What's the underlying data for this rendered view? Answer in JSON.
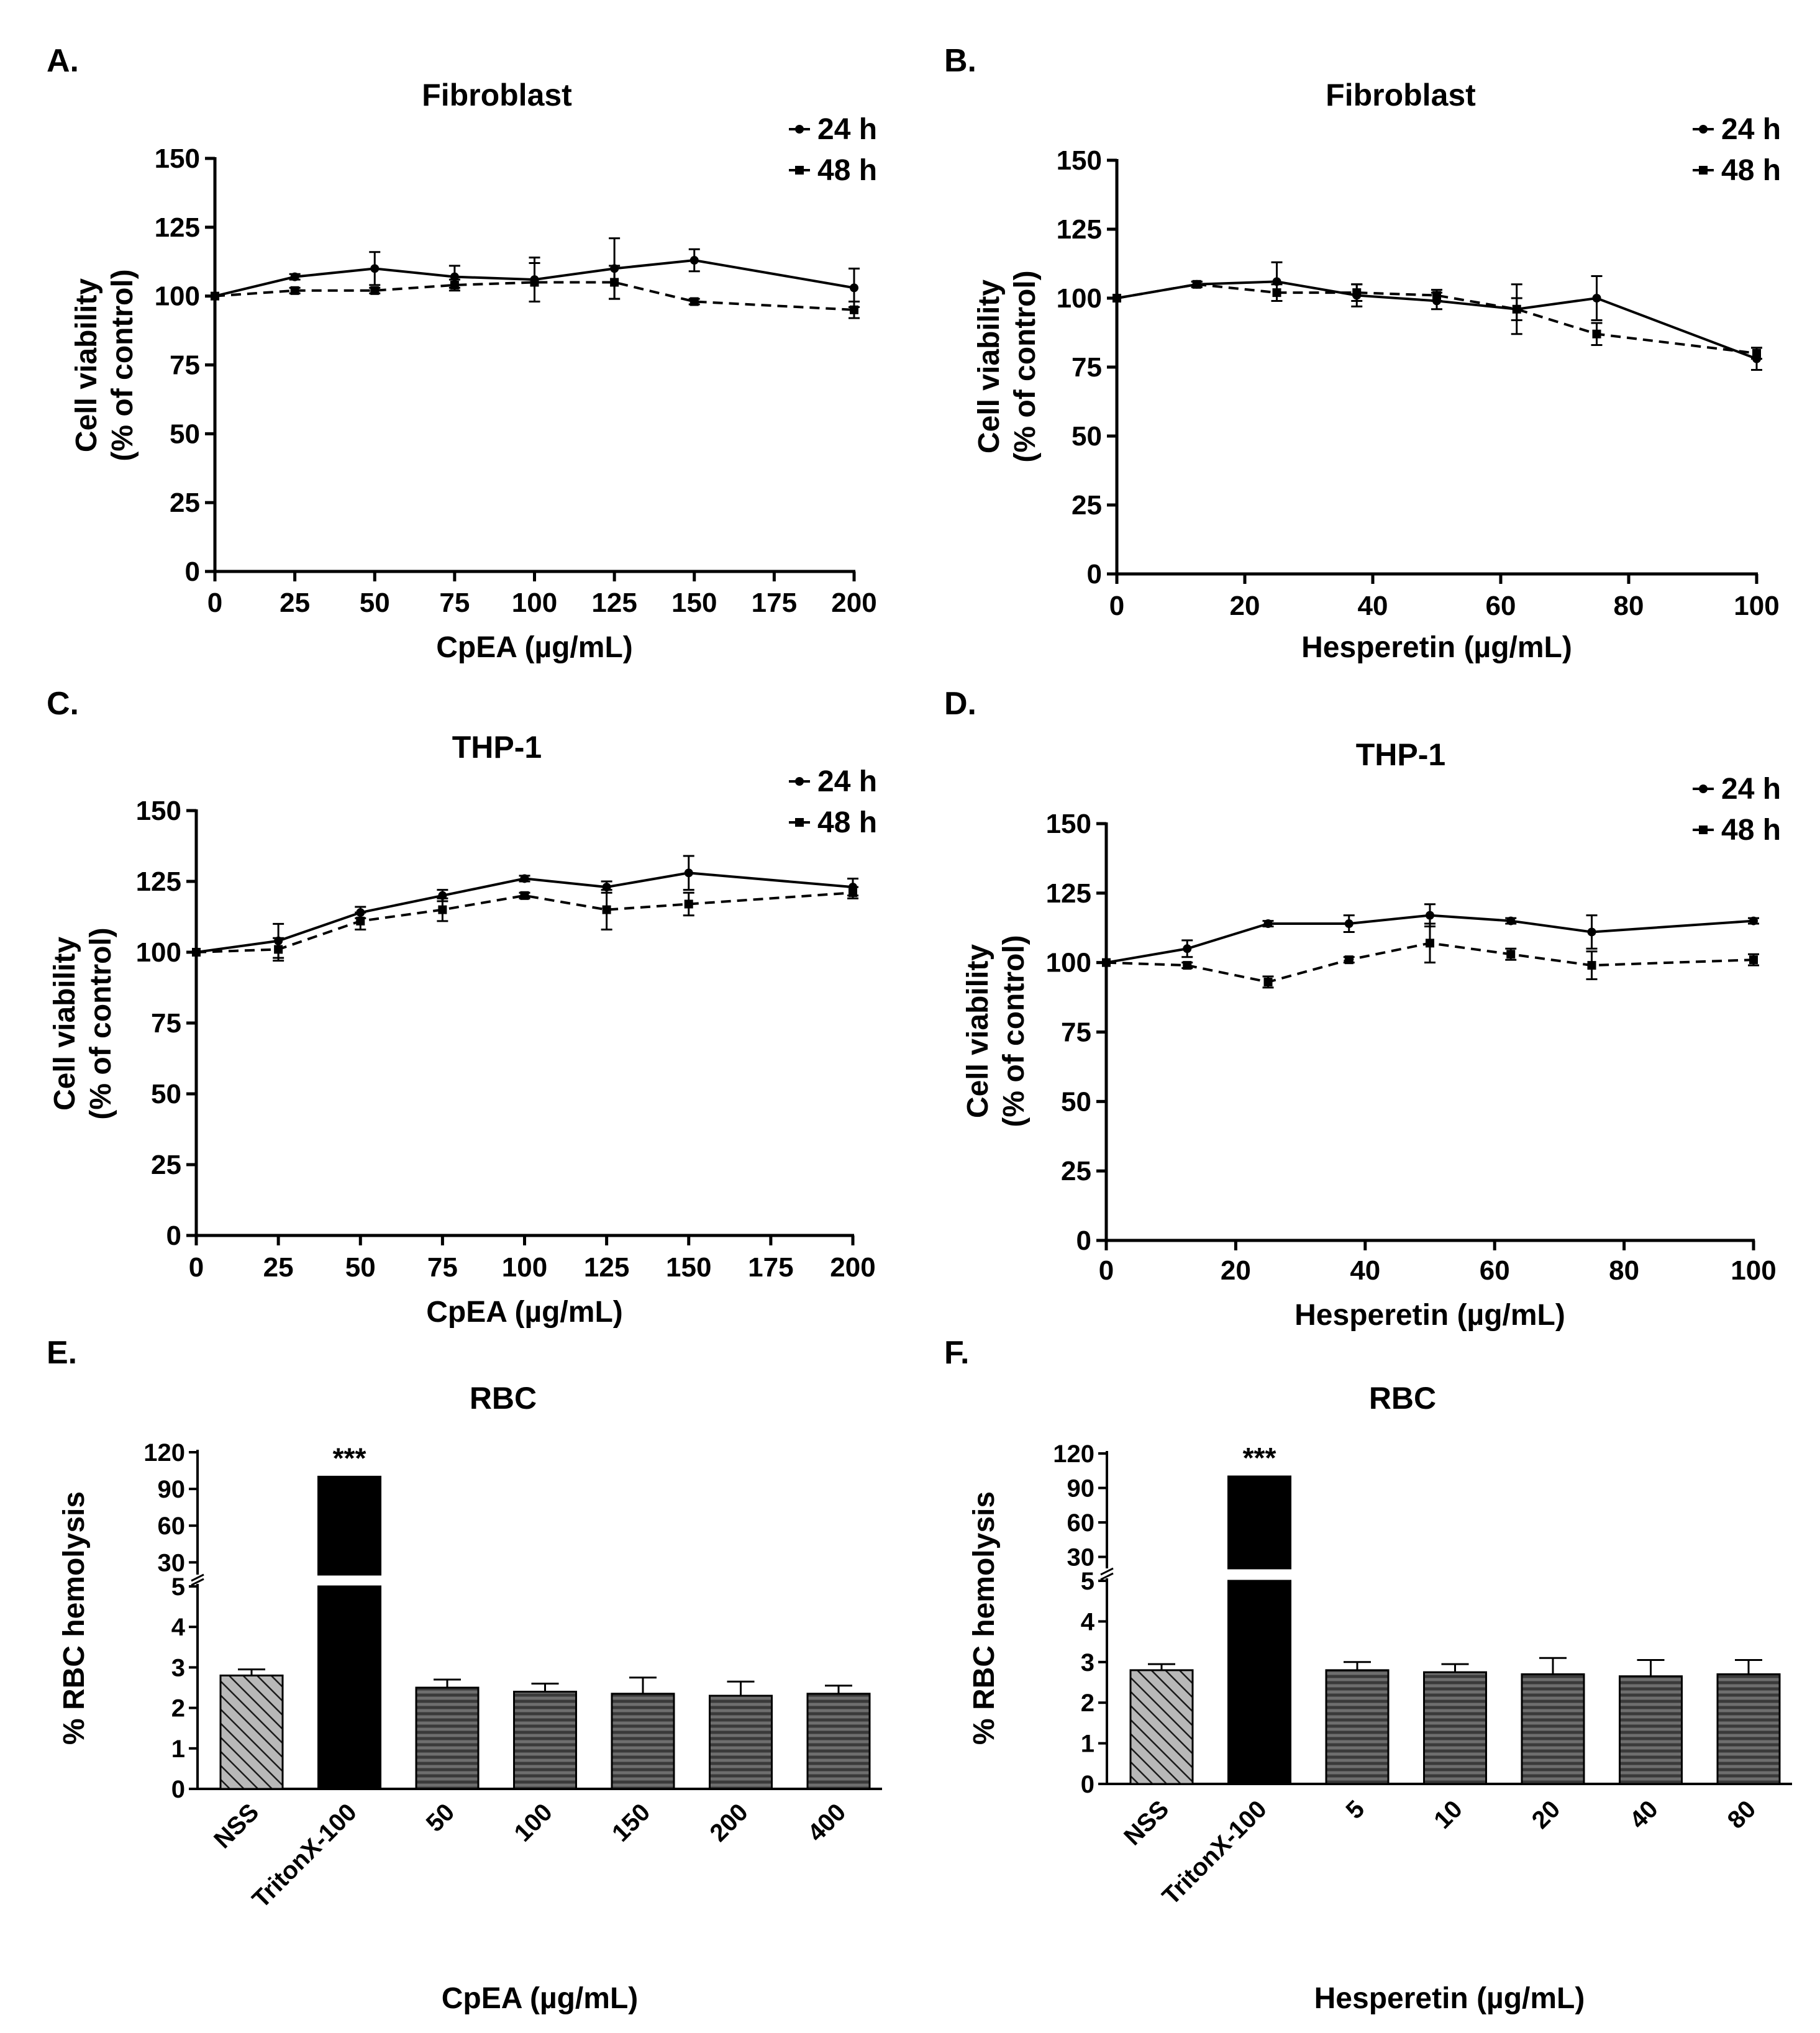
{
  "colors": {
    "ink": "#000000",
    "bar_dark": "#3a3a3a",
    "bar_light": "#b8b8b8",
    "bar_triton": "#000000",
    "stripe": "#1a1a1a"
  },
  "chart_data": [
    {
      "id": "A",
      "panel_label": "A.",
      "type": "line",
      "title": "Fibroblast",
      "xlabel": "CpEA (µg/mL)",
      "ylabel_line1": "Cell viability",
      "ylabel_line2": "(% of control)",
      "xlim": [
        0,
        200
      ],
      "ylim": [
        0,
        150
      ],
      "xticks": [
        0,
        25,
        50,
        75,
        100,
        125,
        150,
        175,
        200
      ],
      "yticks": [
        0,
        25,
        50,
        75,
        100,
        125,
        150
      ],
      "series": [
        {
          "name": "24 h",
          "marker": "circle",
          "dash": false,
          "x": [
            0,
            25,
            50,
            75,
            100,
            125,
            150,
            200
          ],
          "y": [
            100,
            107,
            110,
            107,
            106,
            110,
            113,
            103
          ],
          "err": [
            0,
            1,
            6,
            4,
            8,
            11,
            4,
            7
          ]
        },
        {
          "name": "48 h",
          "marker": "square",
          "dash": true,
          "x": [
            0,
            25,
            50,
            75,
            100,
            125,
            150,
            200
          ],
          "y": [
            100,
            102,
            102,
            104,
            105,
            105,
            98,
            95
          ],
          "err": [
            0,
            1,
            1,
            2,
            7,
            6,
            1,
            3
          ]
        }
      ]
    },
    {
      "id": "B",
      "panel_label": "B.",
      "type": "line",
      "title": "Fibroblast",
      "xlabel": "Hesperetin (µg/mL)",
      "ylabel_line1": "Cell viability",
      "ylabel_line2": "(% of control)",
      "xlim": [
        0,
        100
      ],
      "ylim": [
        0,
        150
      ],
      "xticks": [
        0,
        20,
        40,
        60,
        80,
        100
      ],
      "yticks": [
        0,
        25,
        50,
        75,
        100,
        125,
        150
      ],
      "series": [
        {
          "name": "24 h",
          "marker": "circle",
          "dash": false,
          "x": [
            0,
            12.5,
            25,
            37.5,
            50,
            62.5,
            75,
            100
          ],
          "y": [
            100,
            105,
            106,
            101,
            99,
            96,
            100,
            78
          ],
          "err": [
            0,
            1,
            7,
            4,
            3,
            9,
            8,
            4
          ]
        },
        {
          "name": "48 h",
          "marker": "square",
          "dash": true,
          "x": [
            0,
            12.5,
            25,
            37.5,
            50,
            62.5,
            75,
            100
          ],
          "y": [
            100,
            105,
            102,
            102,
            101,
            96,
            87,
            80
          ],
          "err": [
            0,
            1,
            3,
            3,
            2,
            4,
            4,
            2
          ]
        }
      ]
    },
    {
      "id": "C",
      "panel_label": "C.",
      "type": "line",
      "title": "THP-1",
      "xlabel": "CpEA (µg/mL)",
      "ylabel_line1": "Cell viability",
      "ylabel_line2": "(% of control)",
      "xlim": [
        0,
        200
      ],
      "ylim": [
        0,
        150
      ],
      "xticks": [
        0,
        25,
        50,
        75,
        100,
        125,
        150,
        175,
        200
      ],
      "yticks": [
        0,
        25,
        50,
        75,
        100,
        125,
        150
      ],
      "series": [
        {
          "name": "24 h",
          "marker": "circle",
          "dash": false,
          "x": [
            0,
            25,
            50,
            75,
            100,
            125,
            150,
            200
          ],
          "y": [
            100,
            104,
            114,
            120,
            126,
            123,
            128,
            123
          ],
          "err": [
            0,
            6,
            2,
            2,
            1,
            2,
            6,
            3
          ]
        },
        {
          "name": "48 h",
          "marker": "square",
          "dash": true,
          "x": [
            0,
            25,
            50,
            75,
            100,
            125,
            150,
            200
          ],
          "y": [
            100,
            101,
            111,
            115,
            120,
            115,
            117,
            121
          ],
          "err": [
            0,
            4,
            3,
            4,
            1,
            7,
            4,
            2
          ]
        }
      ]
    },
    {
      "id": "D",
      "panel_label": "D.",
      "type": "line",
      "title": "THP-1",
      "xlabel": "Hesperetin (µg/mL)",
      "ylabel_line1": "Cell viability",
      "ylabel_line2": "(% of control)",
      "xlim": [
        0,
        100
      ],
      "ylim": [
        0,
        150
      ],
      "xticks": [
        0,
        20,
        40,
        60,
        80,
        100
      ],
      "yticks": [
        0,
        25,
        50,
        75,
        100,
        125,
        150
      ],
      "series": [
        {
          "name": "24 h",
          "marker": "circle",
          "dash": false,
          "x": [
            0,
            12.5,
            25,
            37.5,
            50,
            62.5,
            75,
            100
          ],
          "y": [
            100,
            105,
            114,
            114,
            117,
            115,
            111,
            115
          ],
          "err": [
            0,
            3,
            1,
            3,
            4,
            1,
            6,
            1
          ]
        },
        {
          "name": "48 h",
          "marker": "square",
          "dash": true,
          "x": [
            0,
            12.5,
            25,
            37.5,
            50,
            62.5,
            75,
            100
          ],
          "y": [
            100,
            99,
            93,
            101,
            107,
            103,
            99,
            101
          ],
          "err": [
            0,
            1,
            2,
            1,
            7,
            2,
            5,
            2
          ]
        }
      ]
    },
    {
      "id": "E",
      "panel_label": "E.",
      "type": "bar",
      "title": "RBC",
      "xlabel": "CpEA (µg/mL)",
      "ylabel": "% RBC hemolysis",
      "lower_ticks": [
        0,
        1,
        2,
        3,
        4,
        5
      ],
      "upper_ticks": [
        30,
        60,
        90,
        120
      ],
      "lower_range": [
        0,
        5
      ],
      "upper_range": [
        20,
        120
      ],
      "categories": [
        "NSS",
        "TritonX-100",
        "50",
        "100",
        "150",
        "200",
        "400"
      ],
      "styles": [
        "diag",
        "solid",
        "horiz",
        "horiz",
        "horiz",
        "horiz",
        "horiz"
      ],
      "values": [
        2.8,
        100,
        2.5,
        2.4,
        2.35,
        2.3,
        2.35
      ],
      "err": [
        0.15,
        0,
        0.2,
        0.2,
        0.4,
        0.35,
        0.2
      ],
      "significance": [
        null,
        "***",
        null,
        null,
        null,
        null,
        null
      ]
    },
    {
      "id": "F",
      "panel_label": "F.",
      "type": "bar",
      "title": "RBC",
      "xlabel": "Hesperetin (µg/mL)",
      "ylabel": "% RBC hemolysis",
      "lower_ticks": [
        0,
        1,
        2,
        3,
        4,
        5
      ],
      "upper_ticks": [
        30,
        60,
        90,
        120
      ],
      "lower_range": [
        0,
        5
      ],
      "upper_range": [
        20,
        120
      ],
      "categories": [
        "NSS",
        "TritonX-100",
        "5",
        "10",
        "20",
        "40",
        "80"
      ],
      "styles": [
        "diag",
        "solid",
        "horiz",
        "horiz",
        "horiz",
        "horiz",
        "horiz"
      ],
      "values": [
        2.8,
        100,
        2.8,
        2.75,
        2.7,
        2.65,
        2.7
      ],
      "err": [
        0.15,
        0,
        0.2,
        0.2,
        0.4,
        0.4,
        0.35
      ],
      "significance": [
        null,
        "***",
        null,
        null,
        null,
        null,
        null
      ]
    }
  ]
}
